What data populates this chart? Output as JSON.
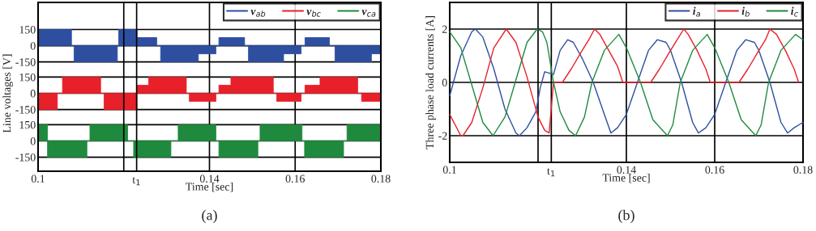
{
  "chart_data": [
    {
      "type": "area",
      "xlim": [
        0.1,
        0.18
      ],
      "ylim": [
        -220,
        400
      ],
      "yticks": [
        -150,
        0,
        150
      ],
      "xticks": [
        0.1,
        0.14,
        0.16,
        0.18
      ],
      "ref_lines": [
        {
          "axis": "x",
          "value": 0.12
        },
        {
          "axis": "x",
          "value": 0.123
        }
      ],
      "tick_labels": "y",
      "grid": true,
      "legend": "top right",
      "series": [
        {
          "name": "v$_{ab}$",
          "color": "#2e4fa0",
          "x": [
            0.1,
            0.1078,
            0.1078,
            0.1084,
            0.1084,
            0.1185,
            0.1185,
            0.1188,
            0.1188,
            0.1231,
            0.1231,
            0.1277,
            0.1277,
            0.1286,
            0.1286,
            0.1374,
            0.1374,
            0.1415,
            0.1415,
            0.1422,
            0.1422,
            0.1482,
            0.1482,
            0.1491,
            0.1491,
            0.1573,
            0.1573,
            0.1614,
            0.1614,
            0.1623,
            0.1623,
            0.168,
            0.168,
            0.1693,
            0.1693,
            0.1778,
            0.1778,
            0.18
          ],
          "values": [
            150,
            150,
            0,
            0,
            -150,
            -150,
            0,
            0,
            150,
            150,
            75,
            75,
            0,
            0,
            -150,
            -150,
            -75,
            -75,
            0,
            0,
            75,
            75,
            0,
            0,
            -150,
            -150,
            -75,
            -75,
            0,
            0,
            75,
            75,
            0,
            0,
            -150,
            -150,
            -75,
            -75
          ]
        }
      ]
    },
    {
      "type": "area",
      "xlim": [
        0.1,
        0.18
      ],
      "ylim": [
        -220,
        220
      ],
      "yticks": [
        -150,
        0,
        150
      ],
      "xticks": [
        0.1,
        0.14,
        0.16,
        0.18
      ],
      "ref_lines": [
        {
          "axis": "x",
          "value": 0.12
        },
        {
          "axis": "x",
          "value": 0.123
        }
      ],
      "tick_labels": "y",
      "grid": true,
      "ylabel": "Line voltages [V]",
      "series": [
        {
          "name": "v$_{bc}$",
          "color": "#e8202a",
          "x": [
            0.1,
            0.1045,
            0.1045,
            0.1057,
            0.1057,
            0.1146,
            0.1146,
            0.1154,
            0.1154,
            0.1231,
            0.1231,
            0.1258,
            0.1258,
            0.1346,
            0.1346,
            0.1353,
            0.1353,
            0.1415,
            0.1415,
            0.1422,
            0.1422,
            0.145,
            0.145,
            0.1549,
            0.1549,
            0.1557,
            0.1557,
            0.1614,
            0.1614,
            0.1623,
            0.1623,
            0.1658,
            0.1658,
            0.1746,
            0.1746,
            0.1755,
            0.1755,
            0.18
          ],
          "values": [
            -150,
            -150,
            0,
            0,
            150,
            150,
            0,
            0,
            -150,
            -150,
            75,
            75,
            150,
            150,
            0,
            0,
            -75,
            -75,
            0,
            0,
            75,
            75,
            150,
            150,
            0,
            0,
            -75,
            -75,
            0,
            0,
            75,
            75,
            150,
            150,
            0,
            0,
            -75,
            -75
          ]
        }
      ]
    },
    {
      "type": "area",
      "xlim": [
        0.1,
        0.18
      ],
      "ylim": [
        -280,
        220
      ],
      "yticks": [
        -150,
        0,
        150
      ],
      "xticks": [
        0.1,
        0.14,
        0.16,
        0.18
      ],
      "ref_lines": [
        {
          "axis": "x",
          "value": 0.12
        },
        {
          "axis": "x",
          "value": 0.123,
          "label": "t$_{1}$"
        }
      ],
      "grid": true,
      "xlabel": "Time [sec]",
      "annotations": [
        "(a)"
      ],
      "series": [
        {
          "name": "v$_{ca}$",
          "color": "#1f8a3e",
          "x": [
            0.1,
            0.1022,
            0.1022,
            0.1114,
            0.1114,
            0.1121,
            0.1121,
            0.1209,
            0.1209,
            0.1223,
            0.1223,
            0.131,
            0.131,
            0.1327,
            0.1327,
            0.1415,
            0.1415,
            0.1422,
            0.1422,
            0.1513,
            0.1513,
            0.1518,
            0.1518,
            0.1616,
            0.1616,
            0.1622,
            0.1622,
            0.1713,
            0.1713,
            0.1721,
            0.1721,
            0.18
          ],
          "values": [
            150,
            150,
            -150,
            -150,
            0,
            0,
            150,
            150,
            0,
            0,
            -150,
            -150,
            0,
            0,
            150,
            150,
            0,
            0,
            -150,
            -150,
            0,
            0,
            150,
            150,
            0,
            0,
            -150,
            -150,
            0,
            0,
            150,
            150
          ]
        }
      ]
    },
    {
      "type": "line",
      "xlim": [
        0.1,
        0.18
      ],
      "ylim": [
        -3,
        3
      ],
      "yticks": [
        -2,
        0,
        2
      ],
      "xticks": [
        0.1,
        0.14,
        0.16,
        0.18
      ],
      "ref_lines": [
        {
          "axis": "x",
          "value": 0.12
        },
        {
          "axis": "x",
          "value": 0.123,
          "label": "t$_{1}$"
        }
      ],
      "grid": true,
      "legend": "top right",
      "xlabel": "Time [sec]",
      "ylabel": "Three phase load currents [A]",
      "annotations": [
        "(b)"
      ],
      "series": [
        {
          "name": "i$_{a}$",
          "color": "#2e4fa0",
          "x": [
            0.1,
            0.1025,
            0.105,
            0.1058,
            0.1075,
            0.11,
            0.1125,
            0.115,
            0.1158,
            0.1175,
            0.1195,
            0.1205,
            0.1215,
            0.1235,
            0.125,
            0.1267,
            0.128,
            0.13,
            0.1325,
            0.135,
            0.1365,
            0.138,
            0.14,
            0.1425,
            0.145,
            0.147,
            0.149,
            0.15,
            0.1525,
            0.155,
            0.1563,
            0.158,
            0.16,
            0.1625,
            0.165,
            0.167,
            0.169,
            0.17,
            0.1725,
            0.175,
            0.1765,
            0.178,
            0.18
          ],
          "values": [
            -0.5,
            1.0,
            1.9,
            2.0,
            1.7,
            0.5,
            -1.0,
            -1.9,
            -2.0,
            -1.7,
            -1.1,
            -0.2,
            0.4,
            0.3,
            1.2,
            1.6,
            1.5,
            0.9,
            0.0,
            -1.2,
            -1.9,
            -1.7,
            -1.2,
            0.0,
            1.2,
            1.6,
            1.5,
            1.2,
            0.0,
            -1.5,
            -1.9,
            -1.7,
            -1.2,
            0.0,
            1.2,
            1.6,
            1.5,
            1.2,
            0.0,
            -1.5,
            -1.9,
            -1.7,
            -1.5
          ]
        },
        {
          "name": "i$_{b}$",
          "color": "#e8202a",
          "x": [
            0.1,
            0.1025,
            0.103,
            0.105,
            0.1075,
            0.11,
            0.1128,
            0.115,
            0.1175,
            0.12,
            0.1215,
            0.1225,
            0.1235,
            0.1255,
            0.1275,
            0.13,
            0.1315,
            0.1328,
            0.134,
            0.136,
            0.138,
            0.1392,
            0.1455,
            0.1475,
            0.15,
            0.1515,
            0.153,
            0.154,
            0.156,
            0.158,
            0.159,
            0.1655,
            0.1675,
            0.17,
            0.1715,
            0.1725,
            0.174,
            0.176,
            0.178,
            0.179
          ],
          "values": [
            -1.2,
            -2.0,
            -2.0,
            -1.5,
            -0.2,
            1.3,
            2.0,
            1.5,
            0.2,
            -1.3,
            -1.8,
            -1.9,
            0.0,
            0.0,
            0.5,
            1.2,
            1.6,
            2.0,
            1.8,
            1.2,
            0.6,
            0.0,
            0.0,
            0.5,
            1.2,
            1.6,
            2.0,
            1.8,
            1.2,
            0.5,
            0.0,
            0.0,
            0.5,
            1.2,
            1.6,
            2.0,
            1.8,
            1.2,
            0.5,
            0.0
          ]
        },
        {
          "name": "i$_{c}$",
          "color": "#1f8a3e",
          "x": [
            0.1,
            0.1025,
            0.105,
            0.1075,
            0.1098,
            0.1125,
            0.115,
            0.1175,
            0.1198,
            0.121,
            0.122,
            0.1235,
            0.125,
            0.127,
            0.1285,
            0.1305,
            0.1322,
            0.135,
            0.1383,
            0.14,
            0.1432,
            0.146,
            0.1493,
            0.1505,
            0.1522,
            0.155,
            0.1583,
            0.16,
            0.1632,
            0.166,
            0.1693,
            0.1705,
            0.1722,
            0.175,
            0.1783,
            0.18
          ],
          "values": [
            1.9,
            1.3,
            -0.1,
            -1.5,
            -2.0,
            -1.3,
            0.1,
            1.5,
            2.0,
            1.9,
            1.5,
            0.0,
            -1.1,
            -1.8,
            -2.0,
            -1.3,
            0.0,
            1.2,
            1.8,
            1.3,
            0.0,
            -1.4,
            -2.0,
            -1.6,
            0.0,
            1.2,
            1.8,
            1.3,
            0.0,
            -1.4,
            -2.0,
            -1.6,
            0.0,
            1.2,
            1.8,
            1.6
          ]
        }
      ]
    }
  ]
}
